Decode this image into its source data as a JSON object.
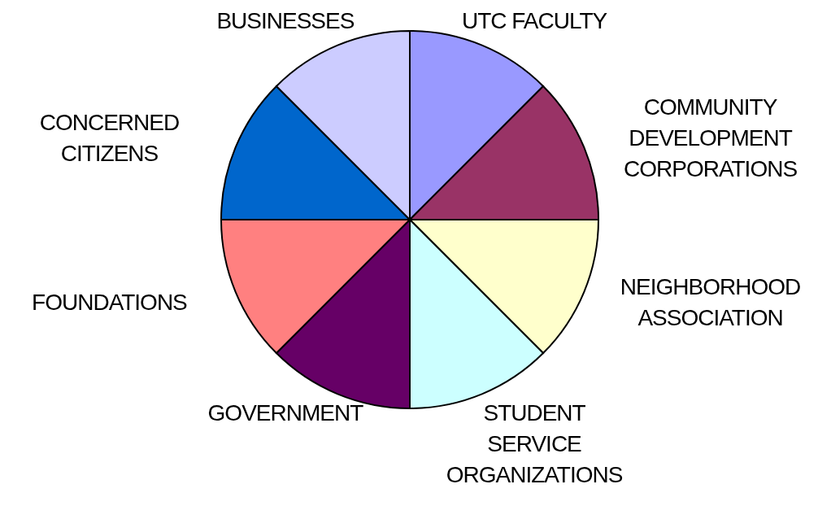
{
  "chart_data": {
    "type": "pie",
    "categories": [
      "UTC FACULTY",
      "COMMUNITY DEVELOPMENT CORPORATIONS",
      "NEIGHBORHOOD ASSOCIATION",
      "STUDENT SERVICE ORGANIZATIONS",
      "GOVERNMENT",
      "FOUNDATIONS",
      "CONCERNED CITIZENS",
      "BUSINESSES"
    ],
    "values": [
      12.5,
      12.5,
      12.5,
      12.5,
      12.5,
      12.5,
      12.5,
      12.5
    ],
    "colors": [
      "#9999ff",
      "#993366",
      "#ffffcc",
      "#ccffff",
      "#660066",
      "#ff8080",
      "#0066cc",
      "#ccccff"
    ],
    "legend": false
  }
}
